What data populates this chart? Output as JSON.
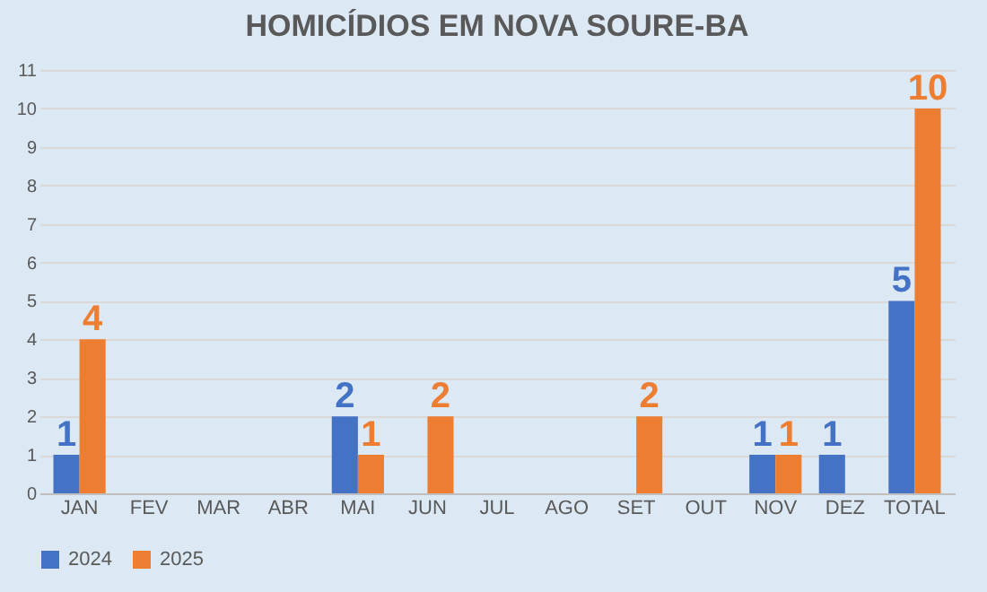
{
  "chart_data": {
    "type": "bar",
    "title": "HOMICÍDIOS EM NOVA SOURE-BA",
    "categories": [
      "JAN",
      "FEV",
      "MAR",
      "ABR",
      "MAI",
      "JUN",
      "JUL",
      "AGO",
      "SET",
      "OUT",
      "NOV",
      "DEZ",
      "TOTAL"
    ],
    "series": [
      {
        "name": "2024",
        "color": "#4472c4",
        "values": [
          1,
          0,
          0,
          0,
          2,
          0,
          0,
          0,
          0,
          0,
          1,
          1,
          5
        ],
        "value_labels": [
          "1",
          null,
          null,
          null,
          "2",
          null,
          null,
          null,
          null,
          null,
          "1",
          "1",
          "5"
        ]
      },
      {
        "name": "2025",
        "color": "#ed7d31",
        "values": [
          4,
          0,
          0,
          0,
          1,
          2,
          0,
          0,
          2,
          0,
          1,
          0,
          10
        ],
        "value_labels": [
          "4",
          null,
          null,
          null,
          "1",
          "2",
          null,
          null,
          "2",
          null,
          "1",
          null,
          "10"
        ]
      }
    ],
    "ylim": [
      0,
      11
    ],
    "yticks": [
      0,
      1,
      2,
      3,
      4,
      5,
      6,
      7,
      8,
      9,
      10,
      11
    ],
    "grid": "y",
    "legend": "bottom"
  }
}
